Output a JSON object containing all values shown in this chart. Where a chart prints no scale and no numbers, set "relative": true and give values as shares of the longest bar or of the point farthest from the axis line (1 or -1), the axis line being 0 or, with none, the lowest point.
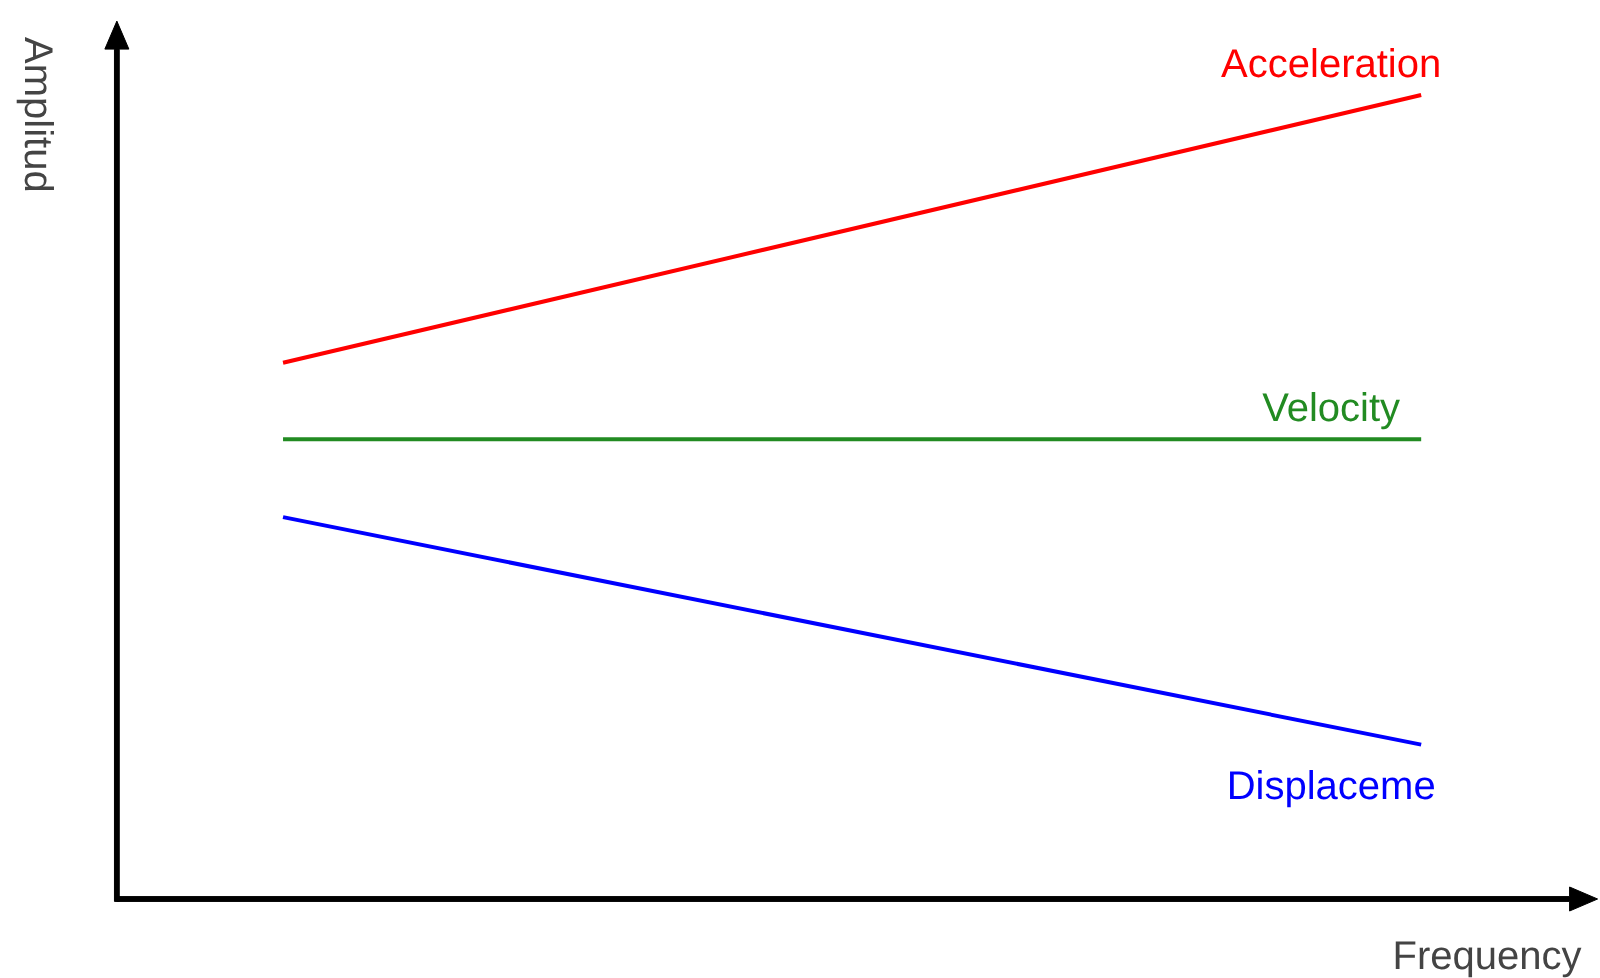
{
  "chart_data": {
    "type": "line",
    "relative": true,
    "xlabel": "Frequency",
    "ylabel": "Amplitud",
    "categories": [
      null,
      null
    ],
    "series": [
      {
        "name": "Acceleration",
        "color": "#ff0000",
        "values": [
          0.667,
          1.0
        ]
      },
      {
        "name": "Velocity",
        "color": "#228b22",
        "values": [
          0.572,
          0.572
        ]
      },
      {
        "name": "Displaceme",
        "color": "#0000ff",
        "values": [
          0.475,
          0.192
        ]
      }
    ],
    "grid": false,
    "legend": false,
    "marker": "none",
    "line_style": "solid"
  }
}
